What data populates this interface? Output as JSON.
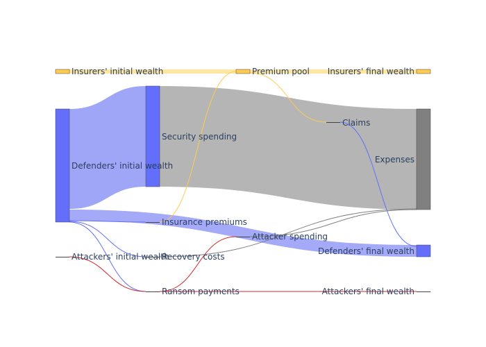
{
  "colors": {
    "defenders": "#636efa",
    "defenders_link": "#9aa0f7",
    "insurers": "#fecb52",
    "insurers_link": "#fde7a3",
    "expenses": "#808080",
    "expenses_link": "#b5b5b5",
    "attackers": "#d62728",
    "text": "#2a3f5f"
  },
  "nodes": [
    {
      "id": "insurers_initial",
      "label": "Insurers' initial wealth"
    },
    {
      "id": "premium_pool",
      "label": "Premium pool"
    },
    {
      "id": "insurers_final",
      "label": "Insurers' final wealth"
    },
    {
      "id": "defenders_initial",
      "label": "Defenders' initial wealth"
    },
    {
      "id": "security_spending",
      "label": "Security spending"
    },
    {
      "id": "claims",
      "label": "Claims"
    },
    {
      "id": "expenses",
      "label": "Expenses"
    },
    {
      "id": "insurance_premiums",
      "label": "Insurance premiums"
    },
    {
      "id": "attacker_spending",
      "label": "Attacker spending"
    },
    {
      "id": "defenders_final",
      "label": "Defenders' final wealth"
    },
    {
      "id": "attackers_initial",
      "label": "Attackers' initial wealth"
    },
    {
      "id": "recovery_costs",
      "label": "Recovery costs"
    },
    {
      "id": "ransom_payments",
      "label": "Ransom payments"
    },
    {
      "id": "attackers_final",
      "label": "Attackers' final wealth"
    }
  ]
}
